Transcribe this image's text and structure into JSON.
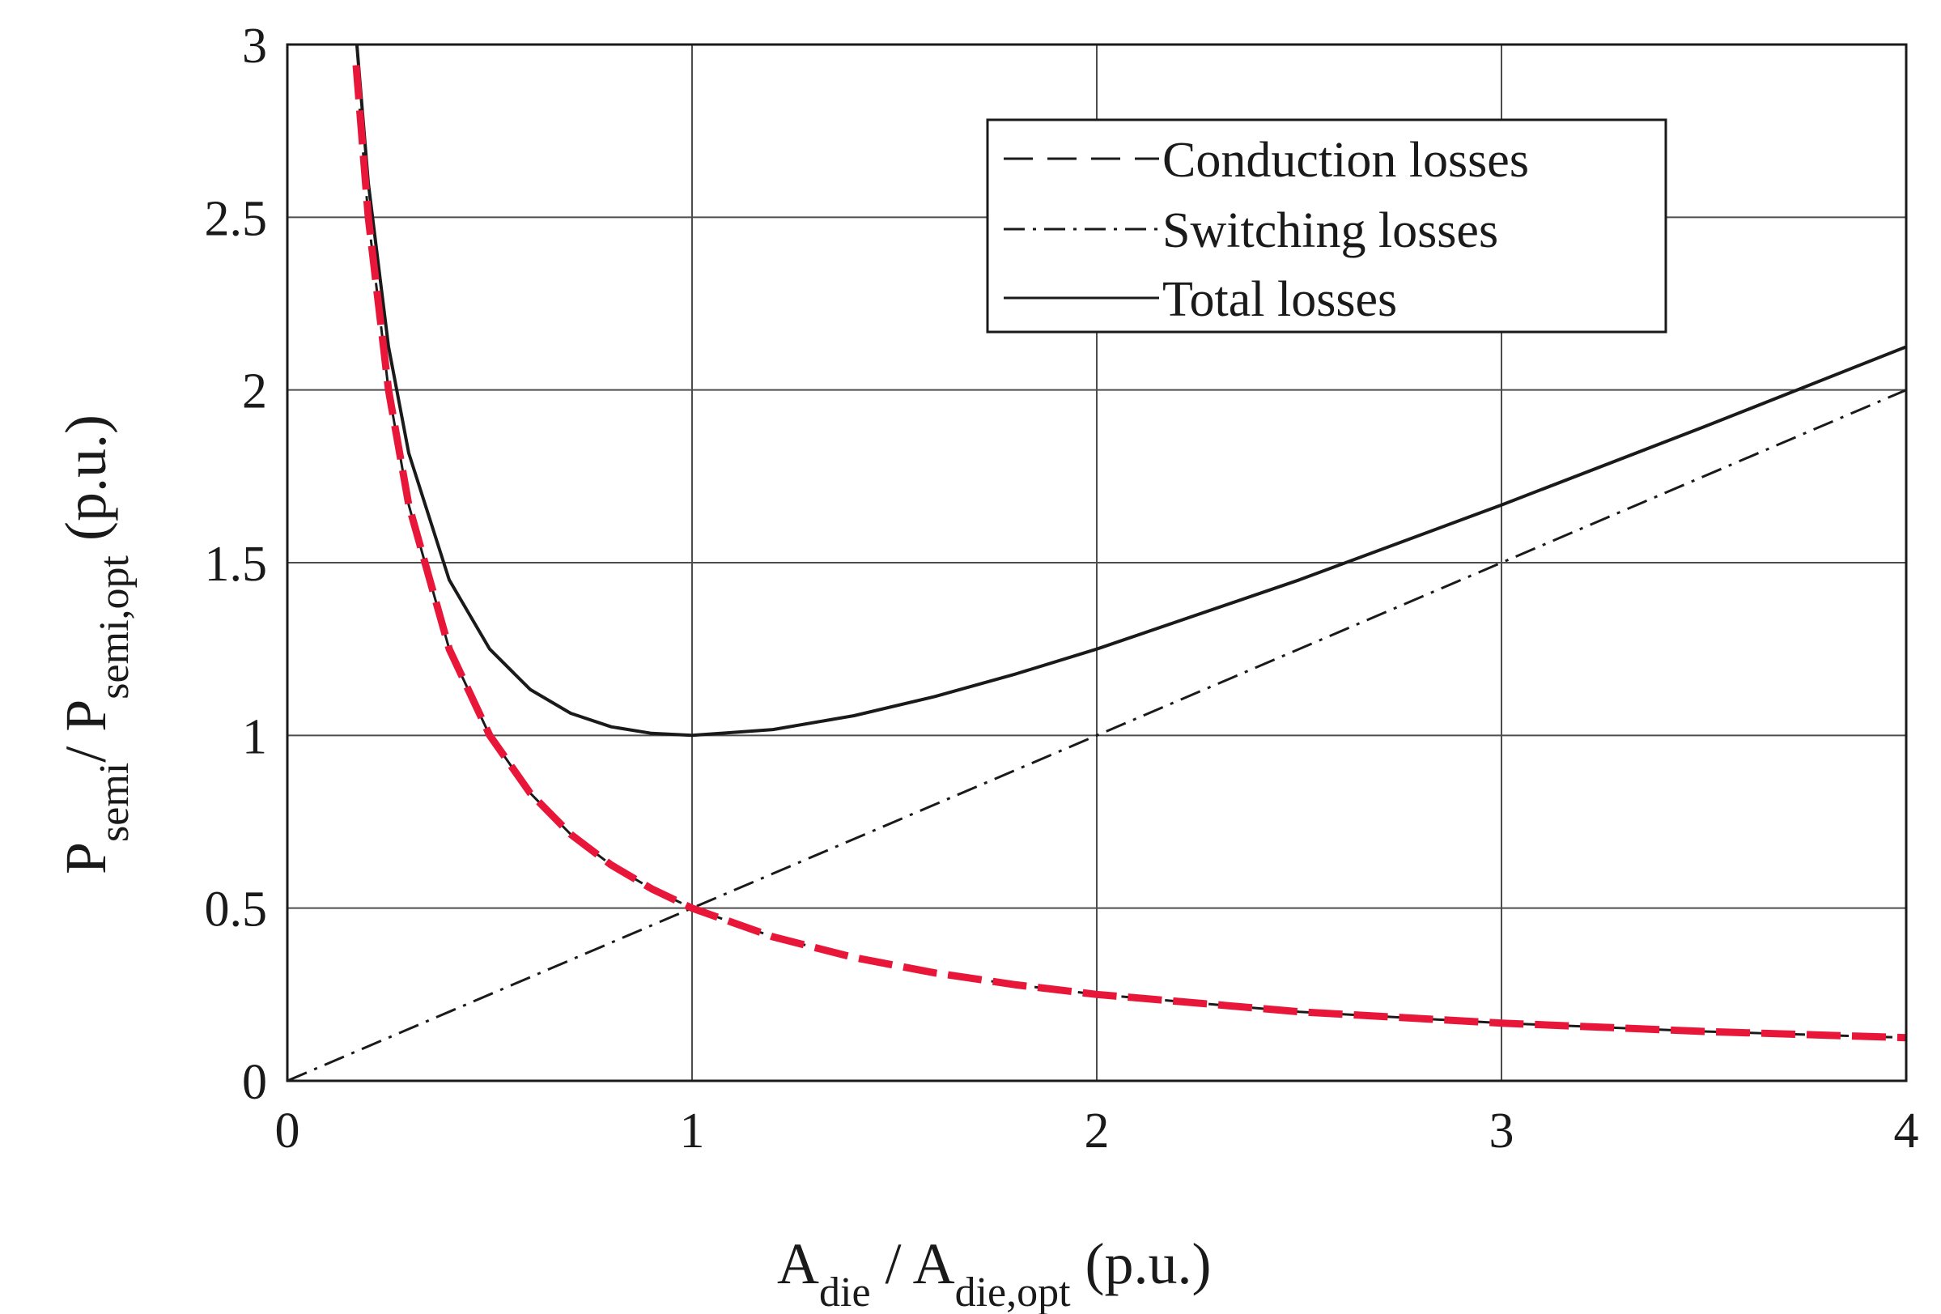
{
  "chart_data": {
    "type": "line",
    "xlim": [
      0,
      4
    ],
    "ylim": [
      0,
      3
    ],
    "grid": true,
    "legend_position": "top-right",
    "x_ticks": [
      "0",
      "1",
      "2",
      "3",
      "4"
    ],
    "y_ticks": [
      "0",
      "0.5",
      "1",
      "1.5",
      "2",
      "2.5",
      "3"
    ],
    "xlabel": {
      "main1": "A",
      "sub1": "die",
      "mid": " / A",
      "sub2": "die,opt",
      "tail": " (p.u.)"
    },
    "ylabel": {
      "main1": "P",
      "sub1": "semi",
      "mid": "/ P",
      "sub2": "semi,opt",
      "tail": " (p.u.)"
    },
    "series": [
      {
        "name": "Conduction losses",
        "style": "dashed",
        "x": [
          0.17,
          0.2,
          0.25,
          0.3,
          0.4,
          0.5,
          0.6,
          0.7,
          0.8,
          0.9,
          1.0,
          1.2,
          1.4,
          1.6,
          1.8,
          2.0,
          2.5,
          3.0,
          3.5,
          4.0
        ],
        "values": [
          2.94,
          2.5,
          2.0,
          1.667,
          1.25,
          1.0,
          0.833,
          0.714,
          0.625,
          0.556,
          0.5,
          0.417,
          0.357,
          0.3125,
          0.278,
          0.25,
          0.2,
          0.167,
          0.143,
          0.125
        ]
      },
      {
        "name": "Switching losses",
        "style": "dash-dot",
        "x": [
          0,
          4
        ],
        "values": [
          0,
          2
        ]
      },
      {
        "name": "Total losses",
        "style": "solid",
        "x": [
          0.17,
          0.2,
          0.25,
          0.3,
          0.4,
          0.5,
          0.6,
          0.7,
          0.8,
          0.9,
          1.0,
          1.2,
          1.4,
          1.6,
          1.8,
          2.0,
          2.5,
          3.0,
          3.5,
          4.0
        ],
        "values": [
          3.025,
          2.6,
          2.125,
          1.817,
          1.45,
          1.25,
          1.133,
          1.064,
          1.025,
          1.006,
          1.0,
          1.017,
          1.057,
          1.1125,
          1.178,
          1.25,
          1.45,
          1.667,
          1.893,
          2.125
        ]
      },
      {
        "name": "Conduction losses (highlight)",
        "style": "red-dashed",
        "x": [
          0.17,
          0.2,
          0.25,
          0.3,
          0.4,
          0.5,
          0.6,
          0.7,
          0.8,
          0.9,
          1.0,
          1.2,
          1.4,
          1.6,
          1.8,
          2.0,
          2.5,
          3.0,
          3.5,
          4.0
        ],
        "values": [
          2.94,
          2.5,
          2.0,
          1.667,
          1.25,
          1.0,
          0.833,
          0.714,
          0.625,
          0.556,
          0.5,
          0.417,
          0.357,
          0.3125,
          0.278,
          0.25,
          0.2,
          0.167,
          0.143,
          0.125
        ]
      }
    ],
    "legend": [
      "Conduction losses",
      "Switching losses",
      "Total losses"
    ],
    "colors": {
      "axis": "#1a1a1a",
      "grid": "#4d4d4d",
      "line": "#1a1a1a",
      "highlight": "#e8173a"
    }
  }
}
